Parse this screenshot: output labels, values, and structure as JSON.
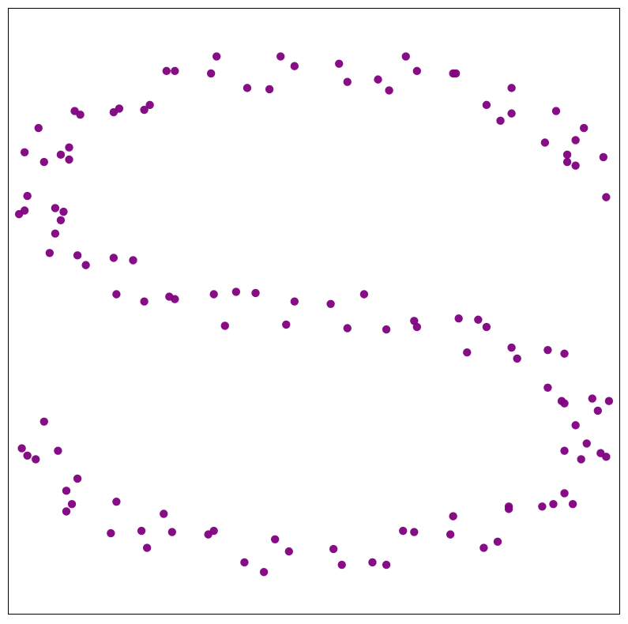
{
  "chart_data": {
    "type": "scatter",
    "color": "#800080",
    "xlim": [
      -1.1,
      1.1
    ],
    "ylim": [
      -2.5,
      2.5
    ],
    "x": [
      1.05,
      0.91,
      0.97,
      0.83,
      0.87,
      0.67,
      0.62,
      0.37,
      0.33,
      0.12,
      0.09,
      -0.16,
      -0.24,
      -0.5,
      -0.53,
      -0.72,
      -0.7,
      -0.88,
      -0.88,
      -1.04,
      -0.97,
      -1.04,
      -0.9,
      -0.95,
      -0.82,
      -0.85,
      -0.65,
      -0.61,
      -0.36,
      -0.32,
      -0.1,
      -0.07,
      0.18,
      0.26,
      0.52,
      0.55,
      0.73,
      0.71,
      0.9,
      0.89,
      1.06,
      0.98,
      1.05,
      0.9,
      0.96,
      0.82,
      0.86,
      0.66,
      0.61,
      0.36,
      0.32,
      0.1,
      0.07,
      -0.18,
      -0.25,
      -0.51,
      -0.54,
      -0.73,
      -0.71,
      -0.89,
      -0.89,
      -1.05,
      -0.97,
      0.94,
      1.04,
      0.91,
      0.94,
      0.71,
      0.71,
      0.51,
      0.5,
      0.27,
      0.23,
      -0.07,
      -0.12,
      -0.35,
      -0.37,
      -0.59,
      -0.61,
      -0.86,
      -0.84,
      -0.99,
      -0.91,
      -1.03,
      -0.93,
      -1.06,
      -0.91,
      -0.93,
      -0.72,
      -0.71,
      -0.5,
      -0.52,
      -0.28,
      -0.21,
      0.06,
      0.12,
      0.37,
      0.36,
      0.59,
      0.62,
      0.84,
      0.84,
      1.0,
      0.9,
      1.02,
      0.94,
      1.03,
      0.9,
      0.93,
      0.7,
      0.7,
      0.5,
      0.49,
      0.26,
      0.21,
      -0.09,
      -0.14,
      -0.36,
      -0.38,
      -0.6,
      -0.62,
      -0.87,
      -0.85,
      -1.0,
      -0.92,
      -1.03
    ],
    "y": [
      0.94,
      1.29,
      1.51,
      1.39,
      1.65,
      1.57,
      1.7,
      1.98,
      2.1,
      1.89,
      2.04,
      1.83,
      1.84,
      1.98,
      1.98,
      1.64,
      1.67,
      1.35,
      1.25,
      1.31,
      1.23,
      0.83,
      0.82,
      0.48,
      0.38,
      0.46,
      0.42,
      0.08,
      0.14,
      -0.12,
      -0.11,
      0.08,
      0.14,
      -0.15,
      -0.06,
      -0.34,
      -0.39,
      -0.3,
      -0.35,
      -0.74,
      -0.74,
      -1.09,
      -1.2,
      -1.15,
      -1.22,
      -1.61,
      -1.59,
      -1.9,
      -1.95,
      -1.82,
      -1.81,
      -2.09,
      -1.96,
      -2.15,
      -2.07,
      -1.82,
      -1.67,
      -1.83,
      -1.57,
      -1.65,
      -1.48,
      -1.13,
      -0.91,
      1.2,
      1.27,
      1.23,
      1.41,
      1.63,
      1.84,
      1.96,
      1.96,
      1.82,
      1.91,
      2.02,
      2.1,
      2.1,
      1.96,
      1.7,
      1.66,
      1.65,
      1.62,
      1.51,
      1.29,
      0.95,
      0.85,
      0.8,
      0.75,
      0.64,
      0.44,
      0.14,
      0.1,
      0.12,
      0.16,
      0.15,
      0.06,
      -0.14,
      -0.13,
      -0.08,
      -0.07,
      -0.13,
      -0.32,
      -0.63,
      -0.72,
      -0.76,
      -0.82,
      -0.94,
      -1.17,
      -1.5,
      -1.59,
      -1.61,
      -1.63,
      -1.69,
      -1.84,
      -2.09,
      -2.07,
      -1.98,
      -1.88,
      -1.81,
      -1.84,
      -1.95,
      -1.81,
      -1.59,
      -1.38,
      -1.22,
      -1.15,
      -1.19
    ]
  }
}
